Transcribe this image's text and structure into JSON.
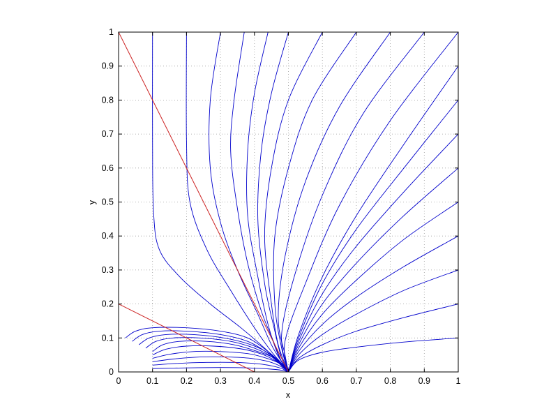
{
  "chart_data": {
    "type": "line",
    "title": "",
    "xlabel": "x",
    "ylabel": "y",
    "xlim": [
      0,
      1
    ],
    "ylim": [
      0,
      1
    ],
    "xticks": [
      "0",
      "0.1",
      "0.2",
      "0.3",
      "0.4",
      "0.5",
      "0.6",
      "0.7",
      "0.8",
      "0.9",
      "1"
    ],
    "yticks": [
      "0",
      "0.1",
      "0.2",
      "0.3",
      "0.4",
      "0.5",
      "0.6",
      "0.7",
      "0.8",
      "0.9",
      "1"
    ],
    "grid": true,
    "grid_style": "dotted",
    "colors": {
      "trajectories": "#0000cc",
      "lines": "#cc2222",
      "grid": "#999999",
      "axes": "#000000"
    },
    "reference_lines": [
      {
        "x": [
          0,
          0.5
        ],
        "y": [
          1,
          0
        ]
      },
      {
        "x": [
          0,
          0.4
        ],
        "y": [
          0.2,
          0
        ]
      }
    ],
    "equilibrium": {
      "x": 0.5,
      "y": 0
    },
    "trajectories_from_top": [
      {
        "x": [
          0.1,
          0.1,
          0.103,
          0.12,
          0.18,
          0.27,
          0.36,
          0.43,
          0.47,
          0.5
        ],
        "y": [
          1,
          0.68,
          0.47,
          0.36,
          0.28,
          0.2,
          0.13,
          0.07,
          0.03,
          0
        ]
      },
      {
        "x": [
          0.2,
          0.2,
          0.21,
          0.26,
          0.33,
          0.4,
          0.45,
          0.48,
          0.5
        ],
        "y": [
          1,
          0.68,
          0.5,
          0.36,
          0.24,
          0.13,
          0.06,
          0.025,
          0
        ]
      },
      {
        "x": [
          0.3,
          0.27,
          0.27,
          0.3,
          0.35,
          0.41,
          0.45,
          0.48,
          0.5
        ],
        "y": [
          1,
          0.8,
          0.6,
          0.44,
          0.3,
          0.17,
          0.08,
          0.03,
          0
        ]
      },
      {
        "x": [
          0.37,
          0.34,
          0.33,
          0.35,
          0.38,
          0.42,
          0.46,
          0.48,
          0.5
        ],
        "y": [
          1,
          0.8,
          0.65,
          0.48,
          0.32,
          0.18,
          0.08,
          0.03,
          0
        ]
      },
      {
        "x": [
          0.44,
          0.4,
          0.38,
          0.38,
          0.41,
          0.44,
          0.47,
          0.5
        ],
        "y": [
          1,
          0.82,
          0.65,
          0.46,
          0.28,
          0.14,
          0.05,
          0
        ]
      },
      {
        "x": [
          0.5,
          0.45,
          0.42,
          0.41,
          0.43,
          0.46,
          0.48,
          0.5
        ],
        "y": [
          1,
          0.82,
          0.65,
          0.45,
          0.26,
          0.12,
          0.04,
          0
        ]
      },
      {
        "x": [
          0.6,
          0.5,
          0.45,
          0.43,
          0.45,
          0.47,
          0.5
        ],
        "y": [
          1,
          0.8,
          0.6,
          0.4,
          0.2,
          0.08,
          0
        ]
      },
      {
        "x": [
          0.7,
          0.57,
          0.5,
          0.46,
          0.46,
          0.48,
          0.5
        ],
        "y": [
          1,
          0.8,
          0.6,
          0.4,
          0.2,
          0.07,
          0
        ]
      },
      {
        "x": [
          0.8,
          0.65,
          0.55,
          0.49,
          0.47,
          0.49,
          0.5
        ],
        "y": [
          1,
          0.78,
          0.56,
          0.34,
          0.16,
          0.05,
          0
        ]
      },
      {
        "x": [
          0.9,
          0.72,
          0.6,
          0.52,
          0.48,
          0.5
        ],
        "y": [
          1,
          0.76,
          0.52,
          0.29,
          0.11,
          0
        ]
      },
      {
        "x": [
          1,
          0.8,
          0.65,
          0.55,
          0.49,
          0.5
        ],
        "y": [
          1,
          0.74,
          0.49,
          0.26,
          0.09,
          0
        ]
      }
    ],
    "trajectories_from_right": [
      {
        "x": [
          1,
          0.84,
          0.7,
          0.6,
          0.53,
          0.5
        ],
        "y": [
          0.9,
          0.67,
          0.46,
          0.28,
          0.11,
          0
        ]
      },
      {
        "x": [
          1,
          0.84,
          0.7,
          0.6,
          0.53,
          0.5
        ],
        "y": [
          0.8,
          0.6,
          0.42,
          0.26,
          0.1,
          0
        ]
      },
      {
        "x": [
          1,
          0.84,
          0.7,
          0.6,
          0.53,
          0.5
        ],
        "y": [
          0.7,
          0.53,
          0.37,
          0.23,
          0.09,
          0
        ]
      },
      {
        "x": [
          1,
          0.84,
          0.7,
          0.6,
          0.53,
          0.5
        ],
        "y": [
          0.6,
          0.46,
          0.32,
          0.2,
          0.08,
          0
        ]
      },
      {
        "x": [
          1,
          0.84,
          0.7,
          0.6,
          0.53,
          0.5
        ],
        "y": [
          0.5,
          0.39,
          0.27,
          0.17,
          0.07,
          0
        ]
      },
      {
        "x": [
          1,
          0.84,
          0.7,
          0.6,
          0.53,
          0.5
        ],
        "y": [
          0.4,
          0.31,
          0.22,
          0.14,
          0.06,
          0
        ]
      },
      {
        "x": [
          1,
          0.84,
          0.7,
          0.6,
          0.53,
          0.5
        ],
        "y": [
          0.3,
          0.24,
          0.17,
          0.11,
          0.05,
          0
        ]
      },
      {
        "x": [
          1,
          0.84,
          0.7,
          0.6,
          0.53,
          0.5
        ],
        "y": [
          0.2,
          0.16,
          0.12,
          0.08,
          0.04,
          0
        ]
      },
      {
        "x": [
          1,
          0.84,
          0.7,
          0.6,
          0.53,
          0.5
        ],
        "y": [
          0.1,
          0.088,
          0.073,
          0.058,
          0.035,
          0
        ]
      }
    ],
    "trajectories_bottom_left": [
      {
        "x": [
          0.02,
          0.05,
          0.1,
          0.2,
          0.3,
          0.38,
          0.44,
          0.48,
          0.5
        ],
        "y": [
          0.1,
          0.12,
          0.13,
          0.13,
          0.12,
          0.1,
          0.06,
          0.025,
          0
        ]
      },
      {
        "x": [
          0.04,
          0.07,
          0.12,
          0.2,
          0.3,
          0.38,
          0.44,
          0.48,
          0.5
        ],
        "y": [
          0.09,
          0.11,
          0.12,
          0.12,
          0.11,
          0.09,
          0.055,
          0.022,
          0
        ]
      },
      {
        "x": [
          0.06,
          0.09,
          0.14,
          0.22,
          0.31,
          0.39,
          0.45,
          0.48,
          0.5
        ],
        "y": [
          0.08,
          0.1,
          0.11,
          0.11,
          0.1,
          0.08,
          0.05,
          0.02,
          0
        ]
      },
      {
        "x": [
          0.08,
          0.11,
          0.16,
          0.24,
          0.33,
          0.4,
          0.45,
          0.48,
          0.5
        ],
        "y": [
          0.07,
          0.09,
          0.1,
          0.1,
          0.09,
          0.07,
          0.045,
          0.018,
          0
        ]
      },
      {
        "x": [
          0.1,
          0.13,
          0.18,
          0.26,
          0.34,
          0.41,
          0.46,
          0.49,
          0.5
        ],
        "y": [
          0.06,
          0.08,
          0.09,
          0.09,
          0.08,
          0.06,
          0.04,
          0.015,
          0
        ]
      },
      {
        "x": [
          0.1,
          0.14,
          0.2,
          0.28,
          0.36,
          0.42,
          0.46,
          0.49,
          0.5
        ],
        "y": [
          0.05,
          0.067,
          0.076,
          0.076,
          0.068,
          0.053,
          0.034,
          0.013,
          0
        ]
      },
      {
        "x": [
          0.1,
          0.15,
          0.22,
          0.3,
          0.38,
          0.43,
          0.47,
          0.49,
          0.5
        ],
        "y": [
          0.04,
          0.052,
          0.06,
          0.06,
          0.054,
          0.042,
          0.027,
          0.01,
          0
        ]
      },
      {
        "x": [
          0.1,
          0.16,
          0.24,
          0.32,
          0.39,
          0.44,
          0.47,
          0.49,
          0.5
        ],
        "y": [
          0.03,
          0.038,
          0.044,
          0.044,
          0.04,
          0.031,
          0.02,
          0.008,
          0
        ]
      },
      {
        "x": [
          0.1,
          0.17,
          0.26,
          0.34,
          0.41,
          0.45,
          0.48,
          0.5
        ],
        "y": [
          0.02,
          0.025,
          0.028,
          0.028,
          0.024,
          0.018,
          0.01,
          0
        ]
      },
      {
        "x": [
          0.1,
          0.2,
          0.3,
          0.38,
          0.44,
          0.48,
          0.5
        ],
        "y": [
          0.01,
          0.012,
          0.013,
          0.012,
          0.009,
          0.005,
          0
        ]
      }
    ]
  }
}
